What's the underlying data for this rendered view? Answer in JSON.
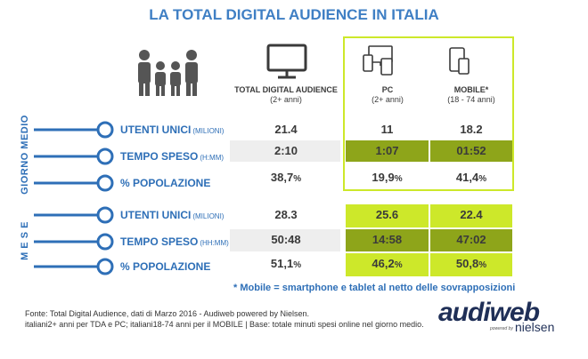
{
  "title": "LA TOTAL DIGITAL AUDIENCE IN ITALIA",
  "columns": {
    "tda": {
      "label": "TOTAL DIGITAL AUDIENCE",
      "sub": "(2+ anni)"
    },
    "pc": {
      "label": "PC",
      "sub": "(2+ anni)"
    },
    "mobile": {
      "label": "MOBILE*",
      "sub": "(18 - 74 anni)"
    }
  },
  "sections": {
    "giorno": "GIORNO MEDIO",
    "mese": "M E S E"
  },
  "rows": {
    "g_utenti": {
      "label": "UTENTI UNICI",
      "unit": "(MILIONI)"
    },
    "g_tempo": {
      "label": "TEMPO SPESO",
      "unit": "(H:MM)"
    },
    "g_pop": {
      "label": "% POPOLAZIONE"
    },
    "m_utenti": {
      "label": "UTENTI UNICI",
      "unit": "(MILIONI)"
    },
    "m_tempo": {
      "label": "TEMPO SPESO",
      "unit": "(HH:MM)"
    },
    "m_pop": {
      "label": "% POPOLAZIONE"
    }
  },
  "values": {
    "g_utenti": {
      "tda": "21.4",
      "pc": "11",
      "mobile": "18.2"
    },
    "g_tempo": {
      "tda": "2:10",
      "pc": "1:07",
      "mobile": "01:52"
    },
    "g_pop": {
      "tda": "38,7",
      "pc": "19,9",
      "mobile": "41,4"
    },
    "m_utenti": {
      "tda": "28.3",
      "pc": "25.6",
      "mobile": "22.4"
    },
    "m_tempo": {
      "tda": "50:48",
      "pc": "14:58",
      "mobile": "47:02"
    },
    "m_pop": {
      "tda": "51,1",
      "pc": "46,2",
      "mobile": "50,8"
    }
  },
  "percent_sign": "%",
  "note": "* Mobile = smartphone e tablet al netto delle sovrapposizioni",
  "footer_line1": "Fonte: Total Digital Audience, dati di Marzo 2016 - Audiweb powered by Nielsen.",
  "footer_line2": "italiani2+ anni per TDA e PC; italiani18-74 anni per il MOBILE | Base: totale minuti spesi online nel giorno medio.",
  "logo": {
    "brand": "audiweb",
    "partner": "nielsen",
    "powered": "powered by"
  },
  "colors": {
    "title_blue": "#3f7fc4",
    "row_blue": "#2e6fb7",
    "lime": "#cde82a",
    "olive": "#8ea51a",
    "lime_light": "#d9ee52",
    "grey_band": "#eeeeee",
    "frame": "#b6cf2a"
  },
  "chart_data": {
    "type": "table",
    "title": "LA TOTAL DIGITAL AUDIENCE IN ITALIA",
    "columns": [
      "TOTAL DIGITAL AUDIENCE (2+ anni)",
      "PC (2+ anni)",
      "MOBILE* (18 - 74 anni)"
    ],
    "groups": [
      {
        "name": "GIORNO MEDIO",
        "rows": [
          {
            "metric": "UTENTI UNICI (MILIONI)",
            "values": [
              21.4,
              11,
              18.2
            ]
          },
          {
            "metric": "TEMPO SPESO (H:MM)",
            "values": [
              "2:10",
              "1:07",
              "01:52"
            ]
          },
          {
            "metric": "% POPOLAZIONE",
            "values": [
              38.7,
              19.9,
              41.4
            ]
          }
        ]
      },
      {
        "name": "M E S E",
        "rows": [
          {
            "metric": "UTENTI UNICI (MILIONI)",
            "values": [
              28.3,
              25.6,
              22.4
            ]
          },
          {
            "metric": "TEMPO SPESO (HH:MM)",
            "values": [
              "50:48",
              "14:58",
              "47:02"
            ]
          },
          {
            "metric": "% POPOLAZIONE",
            "values": [
              51.1,
              46.2,
              50.8
            ]
          }
        ]
      }
    ]
  }
}
